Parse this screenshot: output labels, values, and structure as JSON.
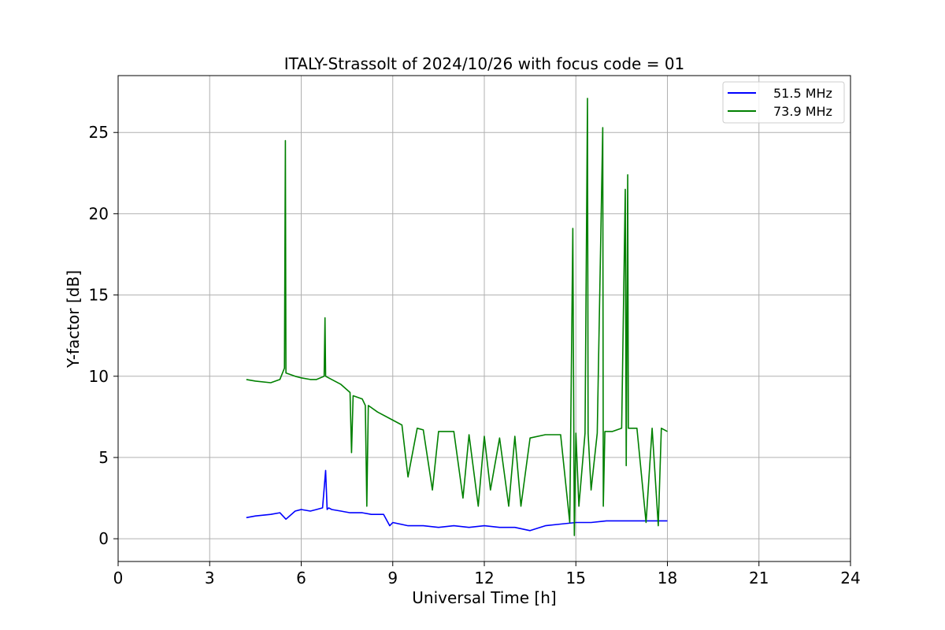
{
  "chart_data": {
    "type": "line",
    "title": "ITALY-Strassolt of 2024/10/26 with focus code = 01",
    "xlabel": "Universal Time [h]",
    "ylabel": "Y-factor [dB]",
    "xlim": [
      0,
      24
    ],
    "ylim": [
      -1.4,
      28.5
    ],
    "xticks": [
      0,
      3,
      6,
      9,
      12,
      15,
      18,
      21,
      24
    ],
    "yticks": [
      0,
      5,
      10,
      15,
      20,
      25
    ],
    "grid": true,
    "legend_position": "top-right",
    "series": [
      {
        "name": "51.5 MHz",
        "color": "#0000ff",
        "x": [
          4.2,
          4.5,
          5.0,
          5.3,
          5.5,
          5.8,
          6.0,
          6.3,
          6.5,
          6.7,
          6.8,
          6.85,
          6.9,
          7.0,
          7.3,
          7.6,
          8.0,
          8.3,
          8.7,
          8.9,
          9.0,
          9.5,
          10.0,
          10.5,
          11.0,
          11.5,
          12.0,
          12.5,
          13.0,
          13.5,
          14.0,
          14.5,
          15.0,
          15.5,
          16.0,
          16.5,
          17.0,
          17.5,
          18.0
        ],
        "y": [
          1.3,
          1.4,
          1.5,
          1.6,
          1.2,
          1.7,
          1.8,
          1.7,
          1.8,
          1.9,
          4.2,
          1.8,
          1.9,
          1.8,
          1.7,
          1.6,
          1.6,
          1.5,
          1.5,
          0.8,
          1.0,
          0.8,
          0.8,
          0.7,
          0.8,
          0.7,
          0.8,
          0.7,
          0.7,
          0.5,
          0.8,
          0.9,
          1.0,
          1.0,
          1.1,
          1.1,
          1.1,
          1.1,
          1.1
        ]
      },
      {
        "name": "73.9 MHz",
        "color": "#008000",
        "x": [
          4.2,
          4.5,
          5.0,
          5.3,
          5.45,
          5.48,
          5.5,
          5.8,
          6.0,
          6.3,
          6.5,
          6.75,
          6.78,
          6.8,
          7.0,
          7.3,
          7.6,
          7.65,
          7.7,
          8.0,
          8.1,
          8.15,
          8.2,
          8.5,
          9.0,
          9.3,
          9.5,
          9.8,
          10.0,
          10.3,
          10.5,
          11.0,
          11.3,
          11.5,
          11.8,
          12.0,
          12.2,
          12.5,
          12.8,
          13.0,
          13.2,
          13.5,
          14.0,
          14.5,
          14.8,
          14.9,
          14.95,
          15.0,
          15.1,
          15.3,
          15.38,
          15.4,
          15.5,
          15.7,
          15.88,
          15.9,
          15.95,
          16.2,
          16.5,
          16.62,
          16.65,
          16.7,
          16.72,
          17.0,
          17.3,
          17.5,
          17.7,
          17.8,
          18.0
        ],
        "y": [
          9.8,
          9.7,
          9.6,
          9.8,
          10.5,
          24.5,
          10.2,
          10.0,
          9.9,
          9.8,
          9.8,
          10.0,
          13.6,
          10.0,
          9.8,
          9.5,
          9.0,
          5.3,
          8.8,
          8.6,
          8.2,
          2.0,
          8.2,
          7.8,
          7.3,
          7.0,
          3.8,
          6.8,
          6.7,
          3.0,
          6.6,
          6.6,
          2.5,
          6.4,
          2.0,
          6.3,
          3.0,
          6.2,
          2.0,
          6.3,
          2.0,
          6.2,
          6.4,
          6.4,
          1.0,
          19.1,
          0.2,
          6.5,
          2.0,
          6.5,
          27.1,
          6.5,
          3.0,
          6.5,
          25.3,
          2.0,
          6.6,
          6.6,
          6.8,
          21.5,
          4.5,
          22.4,
          6.8,
          6.8,
          1.0,
          6.8,
          0.8,
          6.8,
          6.6
        ]
      }
    ]
  }
}
